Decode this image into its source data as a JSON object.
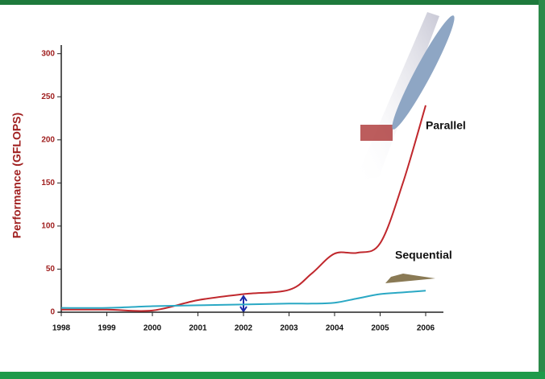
{
  "chart_data": {
    "type": "line",
    "y_label": "Performance (GFLOPS)",
    "x": [
      1998,
      1999,
      2000,
      2001,
      2002,
      2003,
      2003.5,
      2004,
      2004.5,
      2005,
      2005.5,
      2006
    ],
    "xlim": [
      1998,
      2006
    ],
    "xticks": [
      1998,
      1999,
      2000,
      2001,
      2002,
      2003,
      2004,
      2005,
      2006
    ],
    "ylim": [
      0,
      310
    ],
    "yticks": [
      0,
      50,
      100,
      150,
      200,
      250,
      300
    ],
    "series": [
      {
        "name": "Parallel",
        "color": "#c0282d",
        "values": [
          3,
          3,
          2,
          14,
          21,
          26,
          45,
          68,
          69,
          80,
          150,
          240
        ]
      },
      {
        "name": "Sequential",
        "color": "#2aa8c4",
        "values": [
          5,
          5,
          7,
          8,
          9,
          10,
          10,
          11,
          16,
          21,
          23,
          25
        ]
      }
    ]
  }
}
